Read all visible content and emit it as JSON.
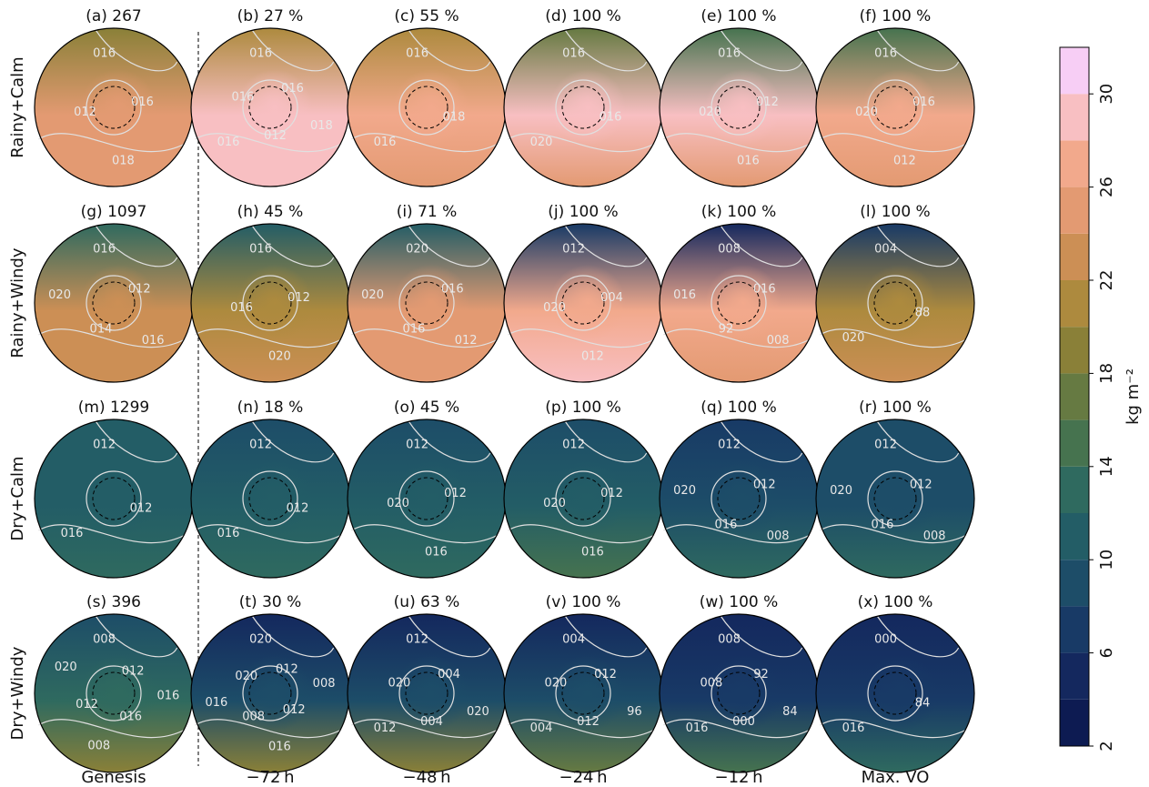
{
  "chart_data": {
    "type": "map-grid",
    "row_labels": [
      "Rainy+Calm",
      "Rainy+Windy",
      "Dry+Calm",
      "Dry+Windy"
    ],
    "column_labels": [
      "Genesis",
      "−72 h",
      "−48 h",
      "−24 h",
      "−12 h",
      "Max. VO"
    ],
    "panels": [
      {
        "title": "(a) 267",
        "field": [
          18,
          24,
          24
        ],
        "contour_labels": [
          "016",
          "016",
          "018",
          "012"
        ]
      },
      {
        "title": "(b) 27 %",
        "field": [
          20,
          28,
          28
        ],
        "contour_labels": [
          "016",
          "016",
          "018",
          "012",
          "016",
          "016"
        ]
      },
      {
        "title": "(c) 55 %",
        "field": [
          20,
          26,
          25
        ],
        "contour_labels": [
          "016",
          "018",
          "016"
        ]
      },
      {
        "title": "(d) 100 %",
        "field": [
          16,
          28,
          25
        ],
        "contour_labels": [
          "016",
          "016",
          "020"
        ]
      },
      {
        "title": "(e) 100 %",
        "field": [
          15,
          28,
          25
        ],
        "contour_labels": [
          "016",
          "012",
          "016",
          "020"
        ]
      },
      {
        "title": "(f) 100 %",
        "field": [
          15,
          27,
          24
        ],
        "contour_labels": [
          "016",
          "016",
          "012",
          "020"
        ]
      },
      {
        "title": "(g) 1097",
        "field": [
          13,
          22,
          23
        ],
        "contour_labels": [
          "016",
          "012",
          "016",
          "014",
          "020"
        ]
      },
      {
        "title": "(h) 45 %",
        "field": [
          11,
          20,
          22
        ],
        "contour_labels": [
          "016",
          "012",
          "020",
          "016"
        ]
      },
      {
        "title": "(i) 71 %",
        "field": [
          10,
          24,
          25
        ],
        "contour_labels": [
          "020",
          "016",
          "012",
          "016",
          "020"
        ]
      },
      {
        "title": "(j) 100 %",
        "field": [
          6,
          26,
          28
        ],
        "contour_labels": [
          "012",
          "004",
          "012",
          "020"
        ]
      },
      {
        "title": "(k) 100 %",
        "field": [
          4,
          26,
          24
        ],
        "contour_labels": [
          "008",
          "016",
          "008",
          "92",
          "016"
        ]
      },
      {
        "title": "(l) 100 %",
        "field": [
          6,
          20,
          23
        ],
        "contour_labels": [
          "004",
          "88",
          "020"
        ]
      },
      {
        "title": "(m) 1299",
        "field": [
          11,
          11,
          13
        ],
        "contour_labels": [
          "012",
          "012",
          "016"
        ]
      },
      {
        "title": "(n) 18 %",
        "field": [
          9,
          10,
          13
        ],
        "contour_labels": [
          "012",
          "012",
          "016"
        ]
      },
      {
        "title": "(o) 45 %",
        "field": [
          8,
          10,
          13
        ],
        "contour_labels": [
          "012",
          "012",
          "016",
          "020"
        ]
      },
      {
        "title": "(p) 100 %",
        "field": [
          8,
          10,
          14
        ],
        "contour_labels": [
          "012",
          "012",
          "016",
          "020"
        ]
      },
      {
        "title": "(q) 100 %",
        "field": [
          7,
          9,
          13
        ],
        "contour_labels": [
          "012",
          "012",
          "008",
          "016",
          "020"
        ]
      },
      {
        "title": "(r) 100 %",
        "field": [
          8,
          9,
          13
        ],
        "contour_labels": [
          "012",
          "012",
          "008",
          "016",
          "020"
        ]
      },
      {
        "title": "(s) 396",
        "field": [
          9,
          12,
          19
        ],
        "contour_labels": [
          "008",
          "012",
          "016",
          "016",
          "008",
          "012",
          "020"
        ]
      },
      {
        "title": "(t) 30 %",
        "field": [
          4,
          9,
          18
        ],
        "contour_labels": [
          "020",
          "012",
          "008",
          "012",
          "016",
          "008",
          "016",
          "020"
        ]
      },
      {
        "title": "(u) 63 %",
        "field": [
          4,
          9,
          19
        ],
        "contour_labels": [
          "012",
          "004",
          "020",
          "004",
          "012",
          "020"
        ]
      },
      {
        "title": "(v) 100 %",
        "field": [
          4,
          8,
          16
        ],
        "contour_labels": [
          "004",
          "012",
          "96",
          "012",
          "004",
          "020"
        ]
      },
      {
        "title": "(w) 100 %",
        "field": [
          5,
          7,
          14
        ],
        "contour_labels": [
          "008",
          "92",
          "84",
          "000",
          "016",
          "008"
        ]
      },
      {
        "title": "(x) 100 %",
        "field": [
          4,
          6,
          13
        ],
        "contour_labels": [
          "000",
          "84",
          "016"
        ]
      }
    ],
    "colorbar": {
      "label": "kg m⁻²",
      "ylim": [
        2,
        32
      ],
      "yticks": [
        2,
        6,
        10,
        14,
        18,
        22,
        26,
        30
      ],
      "colors": [
        "#0d1b52",
        "#14285e",
        "#183a66",
        "#1d4d68",
        "#235d66",
        "#2f6a5f",
        "#46734f",
        "#667a42",
        "#8a8038",
        "#ad8a3e",
        "#cc8f55",
        "#e39a72",
        "#f2a98c",
        "#f8bfc2",
        "#f7cef5"
      ]
    }
  }
}
